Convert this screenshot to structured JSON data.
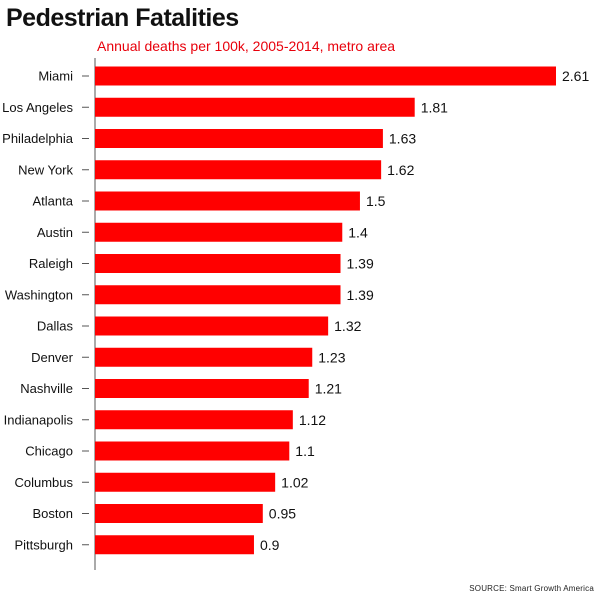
{
  "title": "Pedestrian Fatalities",
  "subtitle": "Annual deaths per 100k, 2005-2014, metro area",
  "source": "SOURCE: Smart Growth America",
  "colors": {
    "bar": "#ff0000",
    "subtitle": "#e8000b"
  },
  "chart_data": {
    "type": "bar",
    "orientation": "horizontal",
    "categories": [
      "Miami",
      "Los Angeles",
      "Philadelphia",
      "New York",
      "Atlanta",
      "Austin",
      "Raleigh",
      "Washington",
      "Dallas",
      "Denver",
      "Nashville",
      "Indianapolis",
      "Chicago",
      "Columbus",
      "Boston",
      "Pittsburgh"
    ],
    "values": [
      2.61,
      1.81,
      1.63,
      1.62,
      1.5,
      1.4,
      1.39,
      1.39,
      1.32,
      1.23,
      1.21,
      1.12,
      1.1,
      1.02,
      0.95,
      0.9
    ],
    "value_labels": [
      "2.61",
      "1.81",
      "1.63",
      "1.62",
      "1.5",
      "1.4",
      "1.39",
      "1.39",
      "1.32",
      "1.23",
      "1.21",
      "1.12",
      "1.1",
      "1.02",
      "0.95",
      "0.9"
    ],
    "xlim": [
      0,
      2.61
    ],
    "grid": false,
    "data_labels": true
  }
}
